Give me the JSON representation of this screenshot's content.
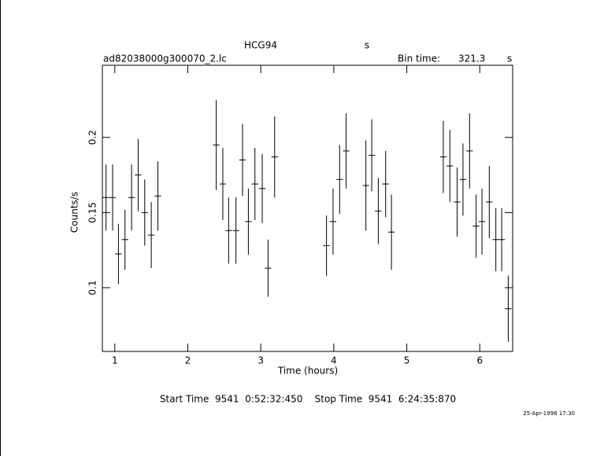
{
  "chart_data": {
    "type": "errorbar",
    "title": "HCG94",
    "title_unit": "s",
    "filename": "ad82038000g300070_2.lc",
    "bin_time_label": "Bin time:",
    "bin_time": 321.3,
    "bin_time_unit": "s",
    "x_label": "Time (hours)",
    "y_label": "Counts/s",
    "footer": "Start Time  9541  0:52:32:450    Stop Time  9541  6:24:35:870",
    "date_stamp": "25-Apr-1998 17:30",
    "color": "#000000",
    "xlim": [
      0.83,
      6.45
    ],
    "ylim": [
      0.0576,
      0.248
    ],
    "xticks": [
      1,
      2,
      3,
      4,
      5,
      6
    ],
    "yticks": [
      0.1,
      0.15,
      0.2
    ],
    "series": [
      {
        "x": [
          0.88,
          0.97,
          1.05,
          1.14,
          1.23,
          1.32,
          1.41,
          1.5,
          1.59,
          2.39,
          2.48,
          2.56,
          2.66,
          2.75,
          2.83,
          2.92,
          3.02,
          3.1,
          3.19,
          3.9,
          3.99,
          4.08,
          4.17,
          4.44,
          4.52,
          4.61,
          4.71,
          4.79,
          5.5,
          5.59,
          5.69,
          5.77,
          5.86,
          5.95,
          6.03,
          6.13,
          6.22,
          6.3,
          6.39
        ],
        "values": [
          0.16,
          0.16,
          0.1225,
          0.132,
          0.16,
          0.175,
          0.15,
          0.135,
          0.161,
          0.195,
          0.169,
          0.138,
          0.138,
          0.185,
          0.144,
          0.169,
          0.166,
          0.113,
          0.187,
          0.128,
          0.144,
          0.172,
          0.191,
          0.168,
          0.188,
          0.151,
          0.169,
          0.137,
          0.187,
          0.181,
          0.157,
          0.172,
          0.191,
          0.141,
          0.144,
          0.157,
          0.132,
          0.132,
          0.086
        ],
        "errors": [
          0.022,
          0.022,
          0.02,
          0.02,
          0.022,
          0.024,
          0.022,
          0.022,
          0.023,
          0.03,
          0.024,
          0.022,
          0.022,
          0.024,
          0.022,
          0.024,
          0.023,
          0.019,
          0.027,
          0.02,
          0.022,
          0.023,
          0.025,
          0.03,
          0.024,
          0.022,
          0.022,
          0.025,
          0.024,
          0.024,
          0.023,
          0.024,
          0.025,
          0.021,
          0.022,
          0.024,
          0.021,
          0.021,
          0.022
        ]
      }
    ]
  }
}
